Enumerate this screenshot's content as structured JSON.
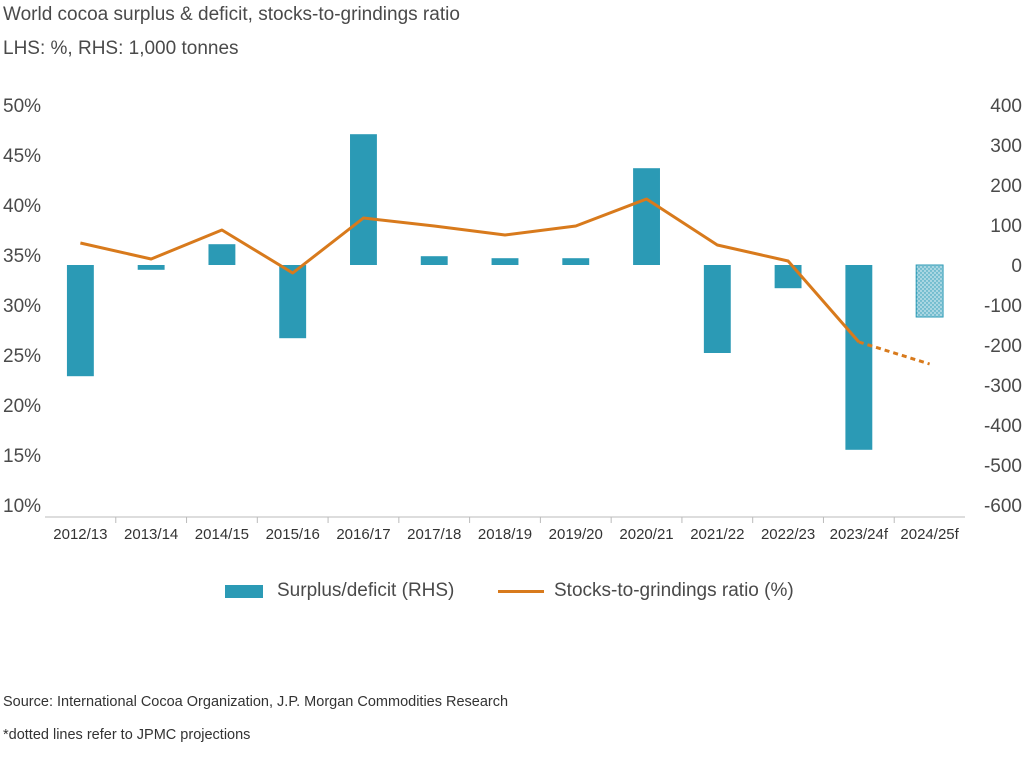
{
  "header": {
    "title": "World cocoa surplus & deficit, stocks-to-grindings ratio",
    "subtitle": "LHS: %, RHS: 1,000 tonnes"
  },
  "footer": {
    "source": "Source: International Cocoa Organization, J.P. Morgan Commodities Research",
    "note": "*dotted lines refer to JPMC projections"
  },
  "colors": {
    "bar": "#2b9ab5",
    "bar_projection": "#a9d6e2",
    "line": "#d87a1c",
    "axis": "#bbbbbb"
  },
  "chart_data": {
    "type": "bar",
    "title": "World cocoa surplus & deficit, stocks-to-grindings ratio",
    "categories": [
      "2012/13",
      "2013/14",
      "2014/15",
      "2015/16",
      "2016/17",
      "2017/18",
      "2018/19",
      "2019/20",
      "2020/21",
      "2021/22",
      "2022/23",
      "2023/24f",
      "2024/25f"
    ],
    "left_axis": {
      "ticks": [
        "10%",
        "15%",
        "20%",
        "25%",
        "30%",
        "35%",
        "40%",
        "45%",
        "50%"
      ],
      "range": [
        10,
        50
      ]
    },
    "right_axis": {
      "ticks": [
        "-600",
        "-500",
        "-400",
        "-300",
        "-200",
        "-100",
        "0",
        "100",
        "200",
        "300",
        "400"
      ],
      "range": [
        -600,
        400
      ]
    },
    "series": [
      {
        "name": "Surplus/deficit (RHS)",
        "type": "bar",
        "axis": "right",
        "values": [
          -278,
          -12,
          52,
          -183,
          327,
          22,
          17,
          17,
          242,
          -220,
          -58,
          -462,
          -130
        ],
        "projected": [
          false,
          false,
          false,
          false,
          false,
          false,
          false,
          false,
          false,
          false,
          false,
          false,
          true
        ]
      },
      {
        "name": "Stocks-to-grindings ratio (%)",
        "type": "line",
        "axis": "left",
        "values": [
          36.2,
          34.6,
          37.5,
          33.2,
          38.7,
          37.9,
          37.0,
          37.9,
          40.6,
          36.0,
          34.4,
          26.3,
          24.1
        ],
        "projected": [
          false,
          false,
          false,
          false,
          false,
          false,
          false,
          false,
          false,
          false,
          false,
          false,
          true
        ]
      }
    ],
    "legend": {
      "bar": "Surplus/deficit (RHS)",
      "line": "Stocks-to-grindings ratio (%)",
      "position": "bottom"
    },
    "grid": false
  }
}
